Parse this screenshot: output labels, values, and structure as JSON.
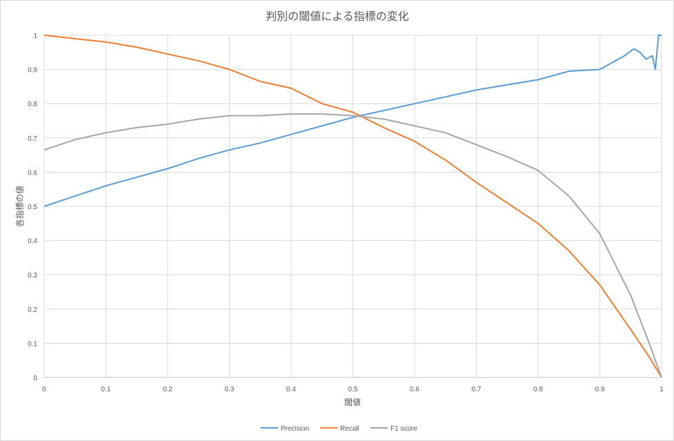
{
  "chart_data": {
    "type": "line",
    "title": "判別の閾値による指標の変化",
    "xlabel": "閾値",
    "ylabel": "各指標の値",
    "xlim": [
      0,
      1
    ],
    "ylim": [
      0,
      1
    ],
    "x_ticks": [
      "0",
      "0.1",
      "0.2",
      "0.3",
      "0.4",
      "0.5",
      "0.6",
      "0.7",
      "0.8",
      "0.9",
      "1"
    ],
    "y_ticks": [
      "0",
      "0.1",
      "0.2",
      "0.3",
      "0.4",
      "0.5",
      "0.6",
      "0.7",
      "0.8",
      "0.9",
      "1"
    ],
    "grid": true,
    "legend_position": "bottom",
    "series": [
      {
        "name": "Precision",
        "color": "#5b9bd5",
        "points": [
          [
            0,
            0.5
          ],
          [
            0.05,
            0.53
          ],
          [
            0.1,
            0.56
          ],
          [
            0.15,
            0.585
          ],
          [
            0.2,
            0.61
          ],
          [
            0.25,
            0.64
          ],
          [
            0.3,
            0.665
          ],
          [
            0.35,
            0.685
          ],
          [
            0.4,
            0.71
          ],
          [
            0.45,
            0.735
          ],
          [
            0.5,
            0.76
          ],
          [
            0.55,
            0.78
          ],
          [
            0.6,
            0.8
          ],
          [
            0.65,
            0.82
          ],
          [
            0.7,
            0.84
          ],
          [
            0.75,
            0.855
          ],
          [
            0.8,
            0.87
          ],
          [
            0.85,
            0.895
          ],
          [
            0.9,
            0.9
          ],
          [
            0.92,
            0.92
          ],
          [
            0.94,
            0.94
          ],
          [
            0.955,
            0.96
          ],
          [
            0.965,
            0.95
          ],
          [
            0.975,
            0.93
          ],
          [
            0.985,
            0.94
          ],
          [
            0.99,
            0.9
          ],
          [
            0.995,
            1.0
          ],
          [
            1.0,
            1.0
          ]
        ]
      },
      {
        "name": "Recall",
        "color": "#ed7d31",
        "points": [
          [
            0,
            1.0
          ],
          [
            0.05,
            0.99
          ],
          [
            0.1,
            0.98
          ],
          [
            0.15,
            0.965
          ],
          [
            0.2,
            0.945
          ],
          [
            0.25,
            0.925
          ],
          [
            0.3,
            0.9
          ],
          [
            0.35,
            0.865
          ],
          [
            0.4,
            0.845
          ],
          [
            0.45,
            0.8
          ],
          [
            0.5,
            0.775
          ],
          [
            0.55,
            0.73
          ],
          [
            0.6,
            0.69
          ],
          [
            0.65,
            0.635
          ],
          [
            0.7,
            0.57
          ],
          [
            0.75,
            0.51
          ],
          [
            0.8,
            0.45
          ],
          [
            0.85,
            0.37
          ],
          [
            0.9,
            0.27
          ],
          [
            0.95,
            0.14
          ],
          [
            0.98,
            0.06
          ],
          [
            1.0,
            0.0
          ]
        ]
      },
      {
        "name": "F1 score",
        "color": "#a5a5a5",
        "points": [
          [
            0,
            0.665
          ],
          [
            0.05,
            0.695
          ],
          [
            0.1,
            0.715
          ],
          [
            0.15,
            0.73
          ],
          [
            0.2,
            0.74
          ],
          [
            0.25,
            0.755
          ],
          [
            0.3,
            0.765
          ],
          [
            0.35,
            0.765
          ],
          [
            0.4,
            0.77
          ],
          [
            0.45,
            0.77
          ],
          [
            0.5,
            0.765
          ],
          [
            0.55,
            0.755
          ],
          [
            0.6,
            0.735
          ],
          [
            0.65,
            0.715
          ],
          [
            0.7,
            0.68
          ],
          [
            0.75,
            0.645
          ],
          [
            0.8,
            0.605
          ],
          [
            0.85,
            0.53
          ],
          [
            0.9,
            0.42
          ],
          [
            0.95,
            0.24
          ],
          [
            0.98,
            0.1
          ],
          [
            1.0,
            0.0
          ]
        ]
      }
    ]
  }
}
